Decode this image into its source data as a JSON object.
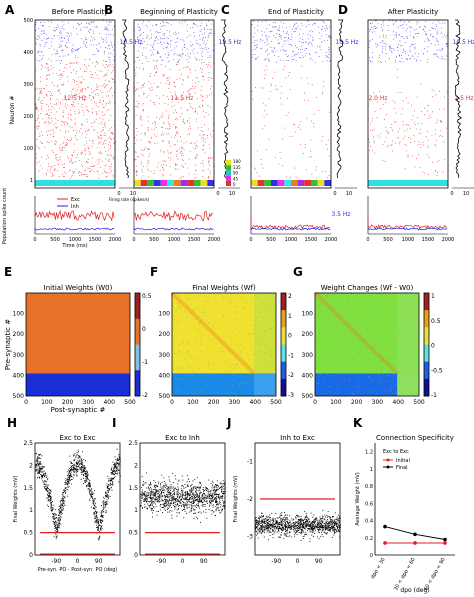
{
  "chart_data": [
    {
      "type": "scatter",
      "panels": [
        {
          "letter": "A",
          "title": "Before Plasticity",
          "exc_rate": "10.5 Hz",
          "inh_rate": "12.5 Hz",
          "ylabel": "Neuron #",
          "yticks": [
            "1",
            "100",
            "200",
            "300",
            "400",
            "500"
          ],
          "xticks": [
            "0",
            "500",
            "1000",
            "1500",
            "2000"
          ],
          "xlabel": "Time (ms)",
          "count_ylabel": "Population spike count",
          "rate_xticks": [
            "0",
            "10"
          ],
          "rate_xlabel": "Firing rate (spikes/s)",
          "legend": [
            "Exc",
            "Inh"
          ]
        },
        {
          "letter": "B",
          "title": "Beginning of Plasticity",
          "exc_rate": "10.5 Hz",
          "inh_rate": "11.5 Hz",
          "xticks": [
            "0",
            "500",
            "1000",
            "1500",
            "2000"
          ],
          "rate_xticks": [
            "0",
            "10"
          ],
          "colorbar_ticks": [
            "0",
            "45",
            "90",
            "135",
            "180"
          ]
        },
        {
          "letter": "C",
          "title": "End of Plasticity",
          "exc_rate": "10.5 Hz",
          "inh_rate": "",
          "count_label": "3.5 Hz",
          "xticks": [
            "0",
            "500",
            "1000",
            "1500",
            "2000"
          ],
          "rate_xticks": [
            "0",
            "10"
          ]
        },
        {
          "letter": "D",
          "title": "After Plasticity",
          "exc_rate": "10.5 Hz",
          "inh_rate": "2.0 Hz",
          "inh_rate2": "2.5 Hz",
          "xticks": [
            "0",
            "500",
            "1000",
            "1500",
            "2000"
          ],
          "rate_xticks": [
            "0",
            "10"
          ]
        }
      ]
    },
    {
      "type": "heatmap",
      "panels": [
        {
          "letter": "E",
          "title": "Initial Weights (W0)",
          "cbar_ticks": [
            "0.5",
            "0",
            "-1",
            "-2"
          ]
        },
        {
          "letter": "F",
          "title": "Final Weights (Wf)",
          "cbar_ticks": [
            "2",
            "1",
            "0",
            "-1",
            "-2",
            "-3"
          ]
        },
        {
          "letter": "G",
          "title": "Weight Changes (Wf - W0)",
          "cbar_ticks": [
            "1",
            "0.5",
            "0",
            "-0.5",
            "-1"
          ]
        }
      ],
      "ticks": [
        "100",
        "200",
        "300",
        "400",
        "500"
      ],
      "xticks": [
        "0",
        "100",
        "200",
        "300",
        "400",
        "500"
      ],
      "xlabel": "Post-synaptic #",
      "ylabel": "Pre-synaptic #"
    },
    {
      "type": "scatter",
      "panels": [
        {
          "letter": "H",
          "title": "Exc to Exc",
          "ylabel": "Final Weights (mV)",
          "yticks": [
            "2.5",
            "2",
            "1.5",
            "1",
            "0.5",
            "0"
          ],
          "xticks": [
            "-90",
            "0",
            "90"
          ],
          "xlabel": "Pre-syn. PO - Post-syn. PO (deg)",
          "red_line": 0.5
        },
        {
          "letter": "I",
          "title": "Exc to Inh",
          "yticks": [
            "2.5",
            "2",
            "1.5",
            "1",
            "0.5",
            "0"
          ],
          "xticks": [
            "-90",
            "0",
            "90"
          ],
          "red_line": 0.5
        },
        {
          "letter": "J",
          "title": "Inh to Exc",
          "ylabel": "Final Weights (mV)",
          "yticks": [
            "-1",
            "-2",
            "-3"
          ],
          "xticks": [
            "-90",
            "0",
            "90"
          ],
          "red_line": -2
        }
      ]
    },
    {
      "type": "line",
      "letter": "K",
      "title": "Connection Specificity",
      "legend_title": "Exc to Exc",
      "ylabel": "Average Weight (mV)",
      "xlabel": "dpo (deg)",
      "categories": [
        "dpo < 30",
        "30 < dpo < 60",
        "60 < dpo < 90"
      ],
      "yticks": [
        "0",
        "0.2",
        "0.4",
        "0.6",
        "0.8",
        "1",
        "1.2"
      ],
      "ylim": [
        0,
        1.3
      ],
      "series": [
        {
          "name": "Initial",
          "color": "#e02020",
          "values": [
            0.14,
            0.14,
            0.14
          ]
        },
        {
          "name": "Final",
          "color": "#000000",
          "values": [
            0.33,
            0.24,
            0.18
          ]
        }
      ]
    }
  ]
}
